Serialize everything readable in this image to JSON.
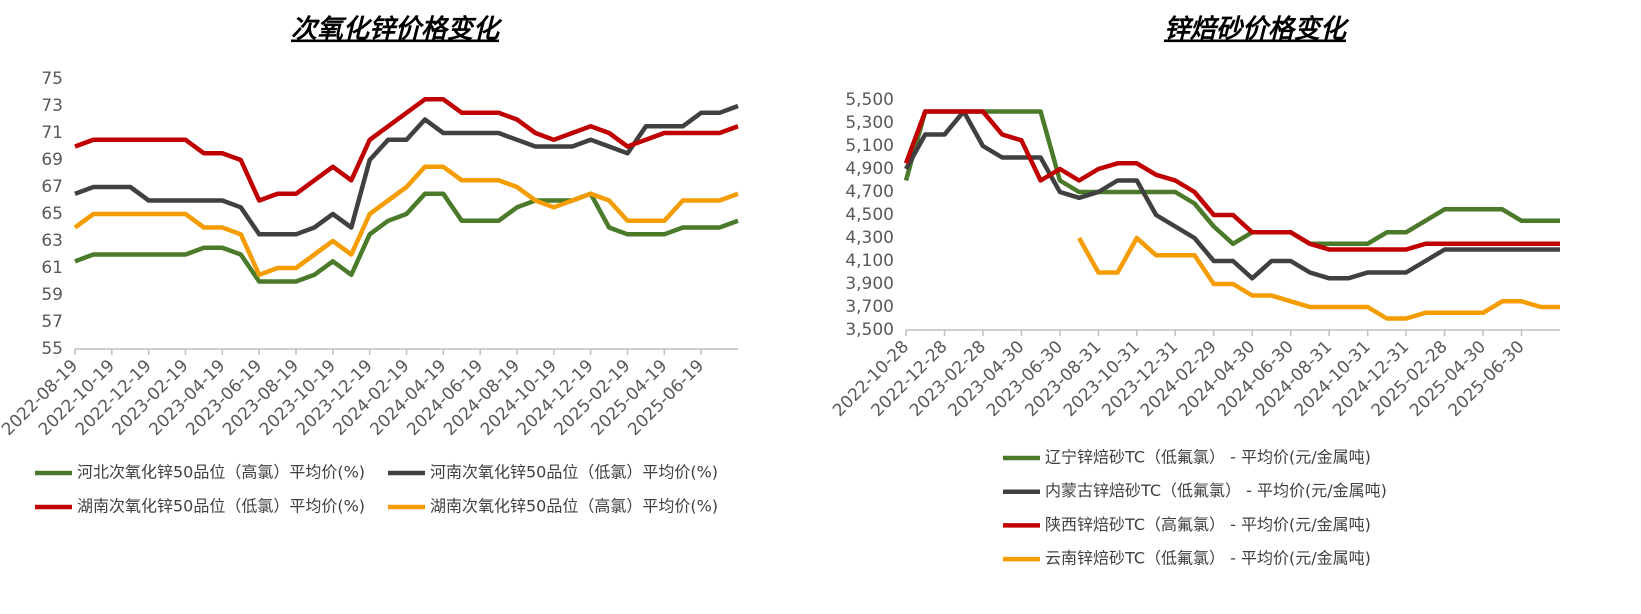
{
  "chart_data": [
    {
      "type": "line",
      "title": "次氧化锌价格变化",
      "categories": [
        "2022-08-19",
        null,
        "2022-10-19",
        null,
        "2022-12-19",
        null,
        "2023-02-19",
        null,
        "2023-04-19",
        null,
        "2023-06-19",
        null,
        "2023-08-19",
        null,
        "2023-10-19",
        null,
        "2023-12-19",
        null,
        "2024-02-19",
        null,
        "2024-04-19",
        null,
        "2024-06-19",
        null,
        "2024-08-19",
        null,
        "2024-10-19",
        null,
        "2024-12-19",
        null,
        "2025-02-19",
        null,
        "2025-04-19",
        null,
        "2025-06-19",
        null,
        null
      ],
      "ylim": [
        55,
        75
      ],
      "yticks": [
        55,
        57,
        59,
        61,
        63,
        65,
        67,
        69,
        71,
        73,
        75
      ],
      "grid": false,
      "legend": "bottom",
      "series": [
        {
          "name": "河北次氧化锌50品位（高氯）平均价(%)",
          "color": "#4a7a2a",
          "values": [
            61.5,
            62,
            62,
            62,
            62,
            62,
            62,
            62.5,
            62.5,
            62,
            60,
            60,
            60,
            60.5,
            61.5,
            60.5,
            63.5,
            64.5,
            65,
            66.5,
            66.5,
            64.5,
            64.5,
            64.5,
            65.5,
            66,
            66,
            66,
            66.5,
            64,
            63.5,
            63.5,
            63.5,
            64,
            64,
            64,
            64.5
          ]
        },
        {
          "name": "河南次氧化锌50品位（低氯）平均价(%)",
          "color": "#404040",
          "values": [
            66.5,
            67,
            67,
            67,
            66,
            66,
            66,
            66,
            66,
            65.5,
            63.5,
            63.5,
            63.5,
            64,
            65,
            64,
            69,
            70.5,
            70.5,
            72,
            71,
            71,
            71,
            71,
            70.5,
            70,
            70,
            70,
            70.5,
            70,
            69.5,
            71.5,
            71.5,
            71.5,
            72.5,
            72.5,
            73
          ]
        },
        {
          "name": "湖南次氧化锌50品位（低氯）平均价(%)",
          "color": "#c00000",
          "values": [
            70,
            70.5,
            70.5,
            70.5,
            70.5,
            70.5,
            70.5,
            69.5,
            69.5,
            69,
            66,
            66.5,
            66.5,
            67.5,
            68.5,
            67.5,
            70.5,
            71.5,
            72.5,
            73.5,
            73.5,
            72.5,
            72.5,
            72.5,
            72,
            71,
            70.5,
            71,
            71.5,
            71,
            70,
            70.5,
            71,
            71,
            71,
            71,
            71.5
          ]
        },
        {
          "name": "湖南次氧化锌50品位（高氯）平均价(%)",
          "color": "#f59c00",
          "values": [
            64,
            65,
            65,
            65,
            65,
            65,
            65,
            64,
            64,
            63.5,
            60.5,
            61,
            61,
            62,
            63,
            62,
            65,
            66,
            67,
            68.5,
            68.5,
            67.5,
            67.5,
            67.5,
            67,
            66,
            65.5,
            66,
            66.5,
            66,
            64.5,
            64.5,
            64.5,
            66,
            66,
            66,
            66.5
          ]
        }
      ]
    },
    {
      "type": "line",
      "title": "锌焙砂价格变化",
      "categories": [
        "2022-10-28",
        null,
        "2022-12-28",
        null,
        "2023-02-28",
        null,
        "2023-04-30",
        null,
        "2023-06-30",
        null,
        "2023-08-31",
        null,
        "2023-10-31",
        null,
        "2023-12-31",
        null,
        "2024-02-29",
        null,
        "2024-04-30",
        null,
        "2024-06-30",
        null,
        "2024-08-31",
        null,
        "2024-10-31",
        null,
        "2024-12-31",
        null,
        "2025-02-28",
        null,
        "2025-04-30",
        null,
        "2025-06-30",
        null,
        null
      ],
      "ylim": [
        3500,
        5500
      ],
      "yticks": [
        {
          "value": 3500,
          "label": "3,500"
        },
        {
          "value": 3700,
          "label": "3,700"
        },
        {
          "value": 3900,
          "label": "3,900"
        },
        {
          "value": 4100,
          "label": "4,100"
        },
        {
          "value": 4300,
          "label": "4,300"
        },
        {
          "value": 4500,
          "label": "4,500"
        },
        {
          "value": 4700,
          "label": "4,700"
        },
        {
          "value": 4900,
          "label": "4,900"
        },
        {
          "value": 5100,
          "label": "5,100"
        },
        {
          "value": 5300,
          "label": "5,300"
        },
        {
          "value": 5500,
          "label": "5,500"
        }
      ],
      "grid": false,
      "legend": "bottom",
      "series": [
        {
          "name": "辽宁锌焙砂TC（低氟氯） - 平均价(元/金属吨)",
          "color": "#4a7a2a",
          "values": [
            4800,
            5400,
            5400,
            5400,
            5400,
            5400,
            5400,
            5400,
            4800,
            4700,
            4700,
            4700,
            4700,
            4700,
            4700,
            4600,
            4400,
            4250,
            4350,
            4350,
            4350,
            4250,
            4250,
            4250,
            4250,
            4350,
            4350,
            4450,
            4550,
            4550,
            4550,
            4550,
            4450,
            4450,
            4450
          ]
        },
        {
          "name": "内蒙古锌焙砂TC（低氟氯） - 平均价(元/金属吨)",
          "color": "#404040",
          "values": [
            4900,
            5200,
            5200,
            5400,
            5100,
            5000,
            5000,
            5000,
            4700,
            4650,
            4700,
            4800,
            4800,
            4500,
            4400,
            4300,
            4100,
            4100,
            3950,
            4100,
            4100,
            4000,
            3950,
            3950,
            4000,
            4000,
            4000,
            4100,
            4200,
            4200,
            4200,
            4200,
            4200,
            4200,
            4200
          ]
        },
        {
          "name": "陕西锌焙砂TC（高氟氯） - 平均价(元/金属吨)",
          "color": "#c00000",
          "values": [
            4950,
            5400,
            5400,
            5400,
            5400,
            5200,
            5150,
            4800,
            4900,
            4800,
            4900,
            4950,
            4950,
            4850,
            4800,
            4700,
            4500,
            4500,
            4350,
            4350,
            4350,
            4250,
            4200,
            4200,
            4200,
            4200,
            4200,
            4250,
            4250,
            4250,
            4250,
            4250,
            4250,
            4250,
            4250
          ]
        },
        {
          "name": "云南锌焙砂TC（低氟氯） - 平均价(元/金属吨)",
          "color": "#f59c00",
          "values": [
            null,
            null,
            null,
            null,
            null,
            null,
            null,
            null,
            null,
            4300,
            4000,
            4000,
            4300,
            4150,
            4150,
            4150,
            3900,
            3900,
            3800,
            3800,
            3750,
            3700,
            3700,
            3700,
            3700,
            3600,
            3600,
            3650,
            3650,
            3650,
            3650,
            3750,
            3750,
            3700,
            3700
          ]
        }
      ]
    }
  ]
}
